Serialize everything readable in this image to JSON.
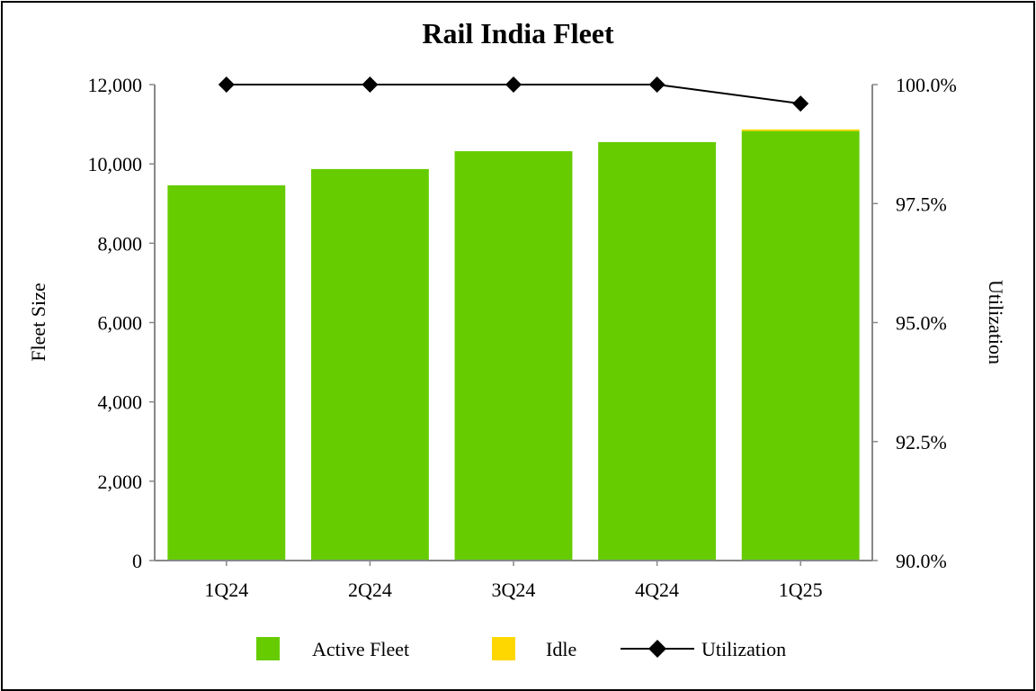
{
  "chart_data": {
    "type": "bar",
    "title": "Rail India Fleet",
    "categories": [
      "1Q24",
      "2Q24",
      "3Q24",
      "4Q24",
      "1Q25"
    ],
    "series": [
      {
        "name": "Active Fleet",
        "type": "stacked-bar",
        "axis": "left",
        "color": "#66CC00",
        "values": [
          9460,
          9870,
          10320,
          10550,
          10830
        ]
      },
      {
        "name": "Idle",
        "type": "stacked-bar",
        "axis": "left",
        "color": "#FFD700",
        "values": [
          0,
          0,
          0,
          0,
          40
        ]
      },
      {
        "name": "Utilization",
        "type": "line",
        "axis": "right",
        "color": "#000000",
        "marker": "diamond",
        "values": [
          100.0,
          100.0,
          100.0,
          100.0,
          99.6
        ]
      }
    ],
    "ylabel": "Fleet Size",
    "ylim": [
      0,
      12000
    ],
    "yticks": [
      "0",
      "2,000",
      "4,000",
      "6,000",
      "8,000",
      "10,000",
      "12,000"
    ],
    "y2label": "Utilization",
    "y2lim": [
      90,
      100
    ],
    "y2ticks": [
      "90.0%",
      "92.5%",
      "95.0%",
      "97.5%",
      "100.0%"
    ],
    "grid": false,
    "legend_position": "bottom"
  }
}
